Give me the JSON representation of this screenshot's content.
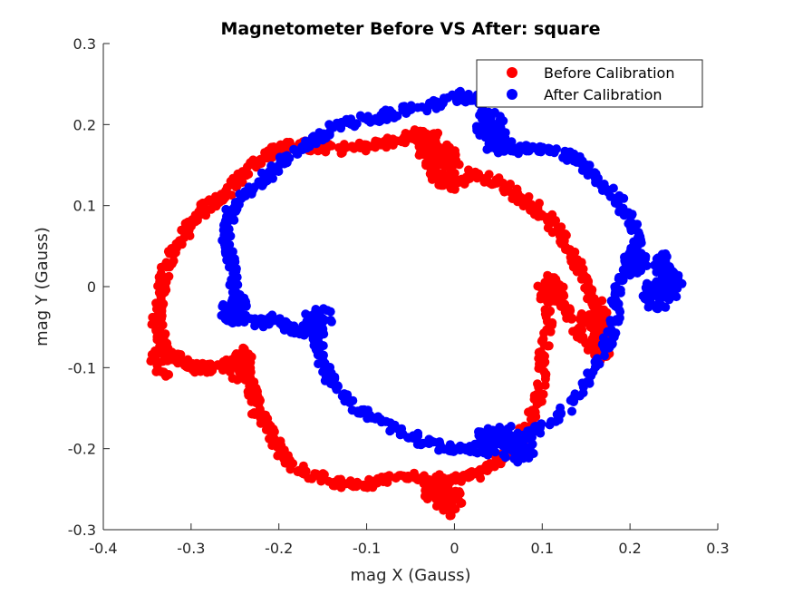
{
  "chart_data": {
    "type": "scatter",
    "title": "Magnetometer Before VS After: square",
    "xlabel": "mag X (Gauss)",
    "ylabel": "mag Y (Gauss)",
    "xlim": [
      -0.4,
      0.3
    ],
    "ylim": [
      -0.3,
      0.3
    ],
    "xticks": [
      "-0.4",
      "-0.3",
      "-0.2",
      "-0.1",
      "0",
      "0.1",
      "0.2",
      "0.3"
    ],
    "yticks": [
      "-0.3",
      "-0.2",
      "-0.1",
      "0",
      "0.1",
      "0.2",
      "0.3"
    ],
    "grid": false,
    "legend_position": "top-right",
    "series": [
      {
        "name": "Before Calibration",
        "color": "#ff0000",
        "marker": "filled-circle",
        "path": [
          [
            -0.03,
            -0.25
          ],
          [
            -0.005,
            -0.27
          ],
          [
            -0.02,
            -0.24
          ],
          [
            -0.05,
            -0.235
          ],
          [
            -0.08,
            -0.24
          ],
          [
            -0.11,
            -0.245
          ],
          [
            -0.14,
            -0.24
          ],
          [
            -0.17,
            -0.23
          ],
          [
            -0.19,
            -0.22
          ],
          [
            -0.2,
            -0.2
          ],
          [
            -0.21,
            -0.175
          ],
          [
            -0.225,
            -0.155
          ],
          [
            -0.23,
            -0.13
          ],
          [
            -0.235,
            -0.105
          ],
          [
            -0.24,
            -0.085
          ],
          [
            -0.255,
            -0.095
          ],
          [
            -0.275,
            -0.1
          ],
          [
            -0.295,
            -0.1
          ],
          [
            -0.31,
            -0.09
          ],
          [
            -0.33,
            -0.08
          ],
          [
            -0.335,
            -0.06
          ],
          [
            -0.34,
            -0.04
          ],
          [
            -0.335,
            -0.01
          ],
          [
            -0.33,
            0.02
          ],
          [
            -0.32,
            0.05
          ],
          [
            -0.305,
            0.07
          ],
          [
            -0.29,
            0.09
          ],
          [
            -0.275,
            0.105
          ],
          [
            -0.255,
            0.12
          ],
          [
            -0.24,
            0.14
          ],
          [
            -0.22,
            0.16
          ],
          [
            -0.2,
            0.17
          ],
          [
            -0.18,
            0.175
          ],
          [
            -0.15,
            0.17
          ],
          [
            -0.12,
            0.17
          ],
          [
            -0.09,
            0.175
          ],
          [
            -0.06,
            0.18
          ],
          [
            -0.04,
            0.19
          ],
          [
            -0.02,
            0.18
          ],
          [
            -0.03,
            0.15
          ],
          [
            -0.02,
            0.13
          ],
          [
            0.0,
            0.125
          ],
          [
            0.02,
            0.14
          ],
          [
            0.045,
            0.13
          ],
          [
            0.07,
            0.115
          ],
          [
            0.09,
            0.1
          ],
          [
            0.11,
            0.08
          ],
          [
            0.125,
            0.055
          ],
          [
            0.14,
            0.03
          ],
          [
            0.15,
            0.0
          ],
          [
            0.16,
            -0.03
          ],
          [
            0.17,
            -0.055
          ],
          [
            0.175,
            -0.08
          ],
          [
            0.165,
            -0.09
          ],
          [
            0.145,
            -0.06
          ],
          [
            0.13,
            -0.03
          ],
          [
            0.115,
            -0.01
          ],
          [
            0.11,
            0.01
          ],
          [
            0.11,
            -0.02
          ],
          [
            0.105,
            -0.06
          ],
          [
            0.1,
            -0.1
          ],
          [
            0.095,
            -0.14
          ],
          [
            0.085,
            -0.17
          ],
          [
            0.07,
            -0.2
          ],
          [
            0.05,
            -0.215
          ],
          [
            0.03,
            -0.23
          ],
          [
            0.01,
            -0.235
          ],
          [
            -0.01,
            -0.245
          ],
          [
            -0.03,
            -0.25
          ]
        ],
        "clusters": [
          [
            -0.02,
            -0.25
          ],
          [
            -0.005,
            -0.265
          ],
          [
            -0.33,
            -0.09
          ],
          [
            -0.245,
            -0.095
          ],
          [
            -0.03,
            0.175
          ],
          [
            -0.01,
            0.155
          ],
          [
            0.16,
            -0.035
          ],
          [
            0.165,
            -0.06
          ],
          [
            0.11,
            -0.005
          ]
        ]
      },
      {
        "name": "After Calibration",
        "color": "#0000ff",
        "marker": "filled-circle",
        "path": [
          [
            0.04,
            -0.19
          ],
          [
            0.03,
            -0.2
          ],
          [
            0.0,
            -0.2
          ],
          [
            -0.03,
            -0.195
          ],
          [
            -0.06,
            -0.18
          ],
          [
            -0.09,
            -0.165
          ],
          [
            -0.12,
            -0.145
          ],
          [
            -0.14,
            -0.115
          ],
          [
            -0.15,
            -0.09
          ],
          [
            -0.155,
            -0.07
          ],
          [
            -0.16,
            -0.04
          ],
          [
            -0.17,
            -0.055
          ],
          [
            -0.19,
            -0.05
          ],
          [
            -0.21,
            -0.04
          ],
          [
            -0.22,
            -0.045
          ],
          [
            -0.24,
            -0.04
          ],
          [
            -0.25,
            -0.03
          ],
          [
            -0.25,
            0.0
          ],
          [
            -0.255,
            0.03
          ],
          [
            -0.26,
            0.06
          ],
          [
            -0.255,
            0.09
          ],
          [
            -0.24,
            0.11
          ],
          [
            -0.22,
            0.13
          ],
          [
            -0.2,
            0.15
          ],
          [
            -0.18,
            0.165
          ],
          [
            -0.16,
            0.18
          ],
          [
            -0.14,
            0.195
          ],
          [
            -0.11,
            0.205
          ],
          [
            -0.08,
            0.21
          ],
          [
            -0.05,
            0.22
          ],
          [
            -0.02,
            0.225
          ],
          [
            0.01,
            0.235
          ],
          [
            0.03,
            0.23
          ],
          [
            0.04,
            0.2
          ],
          [
            0.05,
            0.18
          ],
          [
            0.07,
            0.17
          ],
          [
            0.1,
            0.17
          ],
          [
            0.13,
            0.16
          ],
          [
            0.15,
            0.15
          ],
          [
            0.17,
            0.125
          ],
          [
            0.19,
            0.1
          ],
          [
            0.205,
            0.075
          ],
          [
            0.21,
            0.05
          ],
          [
            0.2,
            0.03
          ],
          [
            0.19,
            0.01
          ],
          [
            0.185,
            -0.02
          ],
          [
            0.18,
            -0.05
          ],
          [
            0.17,
            -0.08
          ],
          [
            0.15,
            -0.12
          ],
          [
            0.12,
            -0.16
          ],
          [
            0.09,
            -0.18
          ],
          [
            0.07,
            -0.19
          ],
          [
            0.05,
            -0.185
          ],
          [
            0.04,
            -0.19
          ]
        ],
        "clusters": [
          [
            0.06,
            -0.19
          ],
          [
            0.075,
            -0.2
          ],
          [
            0.04,
            -0.19
          ],
          [
            0.245,
            0.0
          ],
          [
            0.24,
            0.02
          ],
          [
            0.23,
            -0.01
          ],
          [
            0.205,
            0.03
          ],
          [
            -0.25,
            -0.03
          ],
          [
            -0.155,
            -0.04
          ],
          [
            0.04,
            0.2
          ],
          [
            0.05,
            0.18
          ]
        ]
      }
    ]
  }
}
